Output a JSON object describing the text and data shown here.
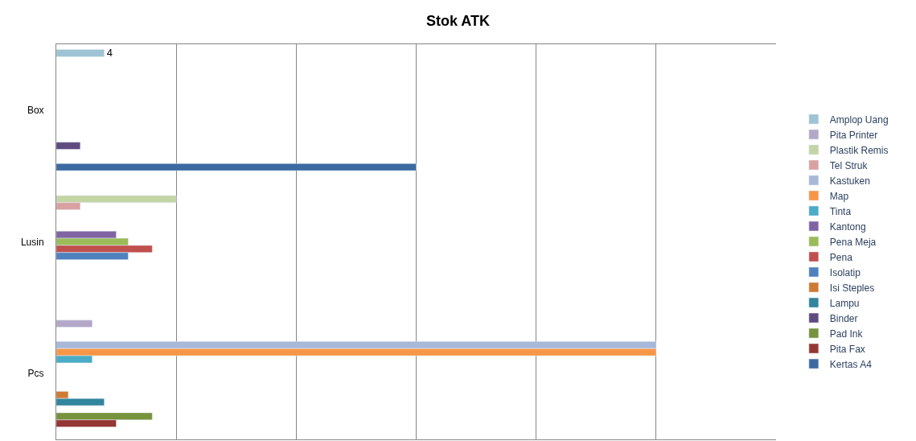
{
  "chart_data": {
    "type": "bar",
    "orientation": "horizontal",
    "title": "Stok ATK",
    "categories": [
      "Box",
      "Lusin",
      "Pcs"
    ],
    "series": [
      {
        "name": "Amplop Uang",
        "color": "#9dc3d4",
        "values": [
          4,
          null,
          null
        ],
        "value_labels": [
          "4",
          null,
          null
        ]
      },
      {
        "name": "Pita Printer",
        "color": "#b3a8c8",
        "values": [
          null,
          null,
          3
        ]
      },
      {
        "name": "Plastik Remis",
        "color": "#c3d5a5",
        "values": [
          null,
          10,
          null
        ]
      },
      {
        "name": "Tel Struk",
        "color": "#d9a1a0",
        "values": [
          null,
          2,
          null
        ]
      },
      {
        "name": "Kastuken",
        "color": "#a7b8d8",
        "values": [
          null,
          null,
          50
        ]
      },
      {
        "name": "Map",
        "color": "#f79646",
        "values": [
          null,
          null,
          50
        ]
      },
      {
        "name": "Tinta",
        "color": "#4bacc6",
        "values": [
          null,
          null,
          3
        ]
      },
      {
        "name": "Kantong",
        "color": "#8064a2",
        "values": [
          null,
          5,
          null
        ]
      },
      {
        "name": "Pena Meja",
        "color": "#9bbb59",
        "values": [
          null,
          6,
          null
        ]
      },
      {
        "name": "Pena",
        "color": "#c0504d",
        "values": [
          null,
          8,
          null
        ]
      },
      {
        "name": "Isolatip",
        "color": "#4f81bd",
        "values": [
          null,
          6,
          null
        ]
      },
      {
        "name": "Isi Steples",
        "color": "#d07a33",
        "values": [
          null,
          null,
          1
        ]
      },
      {
        "name": "Lampu",
        "color": "#31859c",
        "values": [
          null,
          null,
          4
        ]
      },
      {
        "name": "Binder",
        "color": "#5f4b80",
        "values": [
          2,
          null,
          null
        ]
      },
      {
        "name": "Pad Ink",
        "color": "#77933c",
        "values": [
          null,
          null,
          8
        ]
      },
      {
        "name": "Pita Fax",
        "color": "#953735",
        "values": [
          null,
          null,
          5
        ]
      },
      {
        "name": "Kertas A4",
        "color": "#3d6aa0",
        "values": [
          30,
          null,
          null
        ]
      }
    ],
    "xlim": [
      0,
      60
    ],
    "xticks": [
      {
        "value": 0,
        "label": null
      },
      {
        "value": 10,
        "label": null
      },
      {
        "value": 20,
        "label": null
      },
      {
        "value": 30,
        "label": null
      },
      {
        "value": 40,
        "label": null
      },
      {
        "value": 50,
        "label": null
      }
    ],
    "tick_labels": "y",
    "grid": "x",
    "legend": "right"
  }
}
